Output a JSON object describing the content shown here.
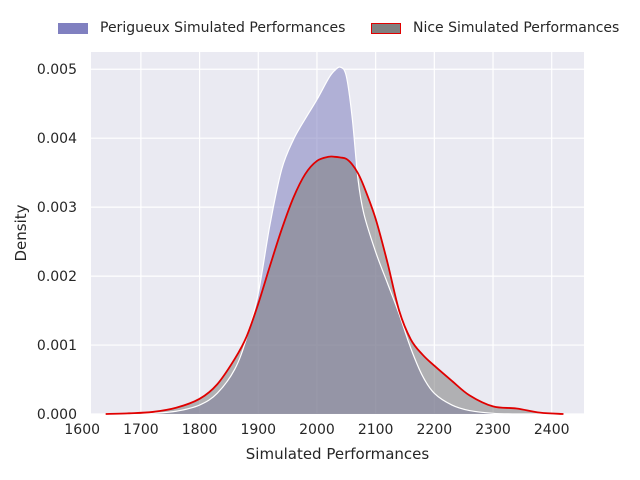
{
  "chart_data": {
    "type": "area",
    "xlabel": "Simulated Performances",
    "ylabel": "Density",
    "xlim": [
      1615,
      2455
    ],
    "ylim": [
      0,
      0.00525
    ],
    "xticks": [
      1600,
      1700,
      1800,
      1900,
      2000,
      2100,
      2200,
      2300,
      2400
    ],
    "yticks": [
      0.0,
      0.001,
      0.002,
      0.003,
      0.004,
      0.005
    ],
    "ytick_labels": [
      "0.000",
      "0.001",
      "0.002",
      "0.003",
      "0.004",
      "0.005"
    ],
    "grid": true,
    "legend_position": "top, above plot",
    "x": [
      1640,
      1680,
      1720,
      1760,
      1800,
      1830,
      1860,
      1880,
      1900,
      1920,
      1940,
      1960,
      1980,
      2000,
      2020,
      2030,
      2040,
      2050,
      2060,
      2070,
      2080,
      2100,
      2120,
      2140,
      2160,
      2180,
      2200,
      2230,
      2260,
      2300,
      2340,
      2380,
      2420
    ],
    "series": [
      {
        "name": "Perigueux Simulated Performances",
        "color": "#8080c0",
        "edge_color": "#ffffff",
        "values": [
          0,
          0,
          1e-05,
          4e-05,
          0.00013,
          0.0003,
          0.00065,
          0.0011,
          0.00175,
          0.00275,
          0.00355,
          0.00398,
          0.00428,
          0.00456,
          0.00487,
          0.00498,
          0.00503,
          0.0049,
          0.0043,
          0.0034,
          0.0029,
          0.00235,
          0.0019,
          0.00145,
          0.00095,
          0.00055,
          0.0003,
          0.00013,
          5e-05,
          1e-05,
          0,
          0,
          0
        ]
      },
      {
        "name": "Nice Simulated Performances",
        "color": "#808080",
        "edge_color": "#e00000",
        "values": [
          0,
          1e-05,
          3e-05,
          9e-05,
          0.00022,
          0.00043,
          0.0008,
          0.00112,
          0.0016,
          0.00215,
          0.00268,
          0.00314,
          0.00348,
          0.00367,
          0.00373,
          0.00373,
          0.00372,
          0.0037,
          0.00362,
          0.00349,
          0.0033,
          0.00283,
          0.0022,
          0.0015,
          0.00108,
          0.00086,
          0.0007,
          0.00048,
          0.00027,
          0.00011,
          8e-05,
          2e-05,
          0
        ]
      }
    ]
  }
}
